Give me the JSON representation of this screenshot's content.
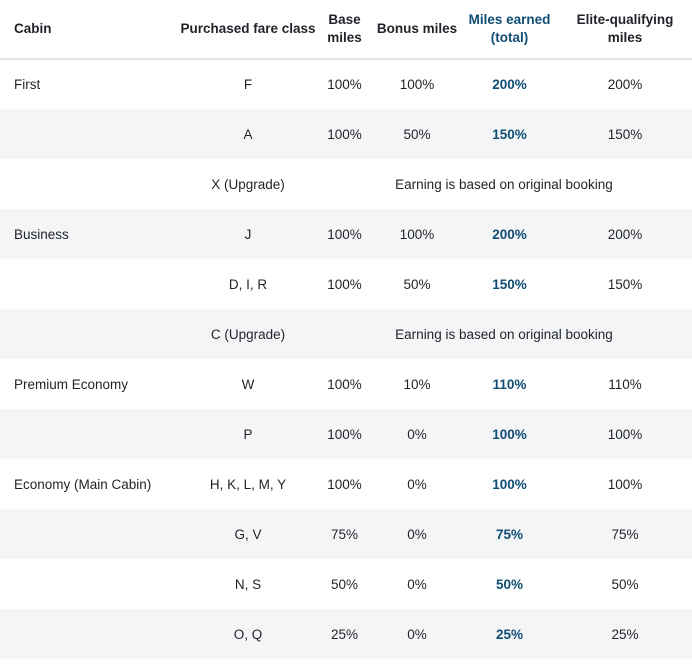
{
  "table": {
    "headers": {
      "cabin": "Cabin",
      "fare_class": "Purchased fare class",
      "base_miles": "Base miles",
      "bonus_miles": "Bonus miles",
      "miles_earned": "Miles earned (total)",
      "elite_qualifying": "Elite-qualifying miles"
    },
    "rows": [
      {
        "cabin": "First",
        "fare_class": "F",
        "base": "100%",
        "bonus": "100%",
        "total": "200%",
        "elite": "200%"
      },
      {
        "cabin": "",
        "fare_class": "A",
        "base": "100%",
        "bonus": "50%",
        "total": "150%",
        "elite": "150%"
      },
      {
        "cabin": "",
        "fare_class": "X (Upgrade)",
        "note": "Earning is based on original booking"
      },
      {
        "cabin": "Business",
        "fare_class": "J",
        "base": "100%",
        "bonus": "100%",
        "total": "200%",
        "elite": "200%"
      },
      {
        "cabin": "",
        "fare_class": "D, I, R",
        "base": "100%",
        "bonus": "50%",
        "total": "150%",
        "elite": "150%"
      },
      {
        "cabin": "",
        "fare_class": "C (Upgrade)",
        "note": "Earning is based on original booking"
      },
      {
        "cabin": "Premium Economy",
        "fare_class": "W",
        "base": "100%",
        "bonus": "10%",
        "total": "110%",
        "elite": "110%"
      },
      {
        "cabin": "",
        "fare_class": "P",
        "base": "100%",
        "bonus": "0%",
        "total": "100%",
        "elite": "100%"
      },
      {
        "cabin": "Economy (Main Cabin)",
        "fare_class": "H, K, L, M, Y",
        "base": "100%",
        "bonus": "0%",
        "total": "100%",
        "elite": "100%"
      },
      {
        "cabin": "",
        "fare_class": "G, V",
        "base": "75%",
        "bonus": "0%",
        "total": "75%",
        "elite": "75%"
      },
      {
        "cabin": "",
        "fare_class": "N, S",
        "base": "50%",
        "bonus": "0%",
        "total": "50%",
        "elite": "50%"
      },
      {
        "cabin": "",
        "fare_class": "O, Q",
        "base": "25%",
        "bonus": "0%",
        "total": "25%",
        "elite": "25%"
      }
    ]
  },
  "colors": {
    "accent": "#0f4d73",
    "stripe": "#f4f5f6",
    "header_rule": "#e2e4e6",
    "text": "#1f2328"
  }
}
